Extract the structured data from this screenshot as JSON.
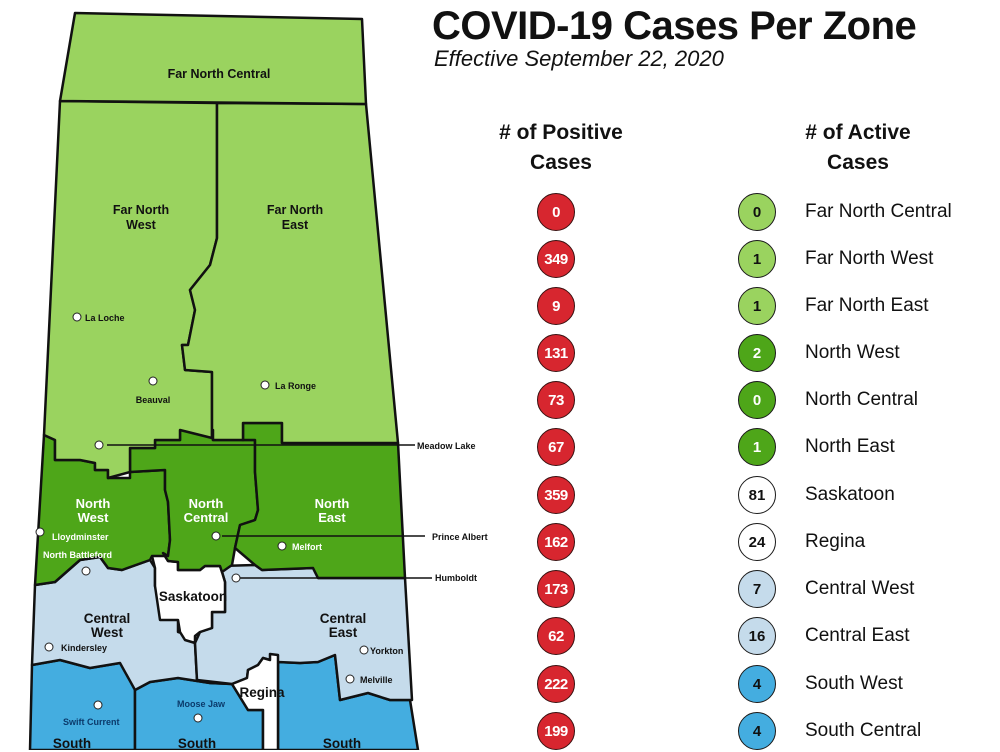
{
  "header": {
    "title": "COVID-19 Cases Per Zone",
    "subtitle": "Effective September 22, 2020"
  },
  "columns": {
    "positive": {
      "line1": "# of Positive",
      "line2": "Cases"
    },
    "active": {
      "line1": "# of Active",
      "line2": "Cases"
    }
  },
  "colors": {
    "positive_circle": "#d7262f",
    "far_north": "#9ad35f",
    "north": "#4ea619",
    "city": "#ffffff",
    "central": "#c5dbeb",
    "south": "#44ade0"
  },
  "zones": [
    {
      "name": "Far North Central",
      "positive": "0",
      "active": "0",
      "color": "#9ad35f",
      "text": "#111"
    },
    {
      "name": "Far North West",
      "positive": "349",
      "active": "1",
      "color": "#9ad35f",
      "text": "#111"
    },
    {
      "name": "Far North East",
      "positive": "9",
      "active": "1",
      "color": "#9ad35f",
      "text": "#111"
    },
    {
      "name": "North West",
      "positive": "131",
      "active": "2",
      "color": "#4ea619",
      "text": "#fff"
    },
    {
      "name": "North Central",
      "positive": "73",
      "active": "0",
      "color": "#4ea619",
      "text": "#fff"
    },
    {
      "name": "North East",
      "positive": "67",
      "active": "1",
      "color": "#4ea619",
      "text": "#fff"
    },
    {
      "name": "Saskatoon",
      "positive": "359",
      "active": "81",
      "color": "#ffffff",
      "text": "#111"
    },
    {
      "name": "Regina",
      "positive": "162",
      "active": "24",
      "color": "#ffffff",
      "text": "#111"
    },
    {
      "name": "Central West",
      "positive": "173",
      "active": "7",
      "color": "#c5dbeb",
      "text": "#111"
    },
    {
      "name": "Central East",
      "positive": "62",
      "active": "16",
      "color": "#c5dbeb",
      "text": "#111"
    },
    {
      "name": "South West",
      "positive": "222",
      "active": "4",
      "color": "#44ade0",
      "text": "#111"
    },
    {
      "name": "South Central",
      "positive": "199",
      "active": "4",
      "color": "#44ade0",
      "text": "#111"
    }
  ],
  "map": {
    "zone_labels": {
      "far_north_central": "Far North Central",
      "far_north_west_1": "Far North",
      "far_north_west_2": "West",
      "far_north_east_1": "Far North",
      "far_north_east_2": "East",
      "north_west_1": "North",
      "north_west_2": "West",
      "north_central_1": "North",
      "north_central_2": "Central",
      "north_east_1": "North",
      "north_east_2": "East",
      "saskatoon": "Saskatoon",
      "regina": "Regina",
      "central_west_1": "Central",
      "central_west_2": "West",
      "central_east_1": "Central",
      "central_east_2": "East",
      "south_west": "South",
      "south_central": "South",
      "south_east": "South"
    },
    "cities": {
      "la_loche": "La Loche",
      "beauval": "Beauval",
      "la_ronge": "La Ronge",
      "meadow_lake": "Meadow Lake",
      "lloydminster": "Lloydminster",
      "north_battleford": "North Battleford",
      "prince_albert": "Prince Albert",
      "melfort": "Melfort",
      "humboldt": "Humboldt",
      "kindersley": "Kindersley",
      "yorkton": "Yorkton",
      "melville": "Melville",
      "moose_jaw": "Moose Jaw",
      "swift_current": "Swift Current"
    }
  }
}
